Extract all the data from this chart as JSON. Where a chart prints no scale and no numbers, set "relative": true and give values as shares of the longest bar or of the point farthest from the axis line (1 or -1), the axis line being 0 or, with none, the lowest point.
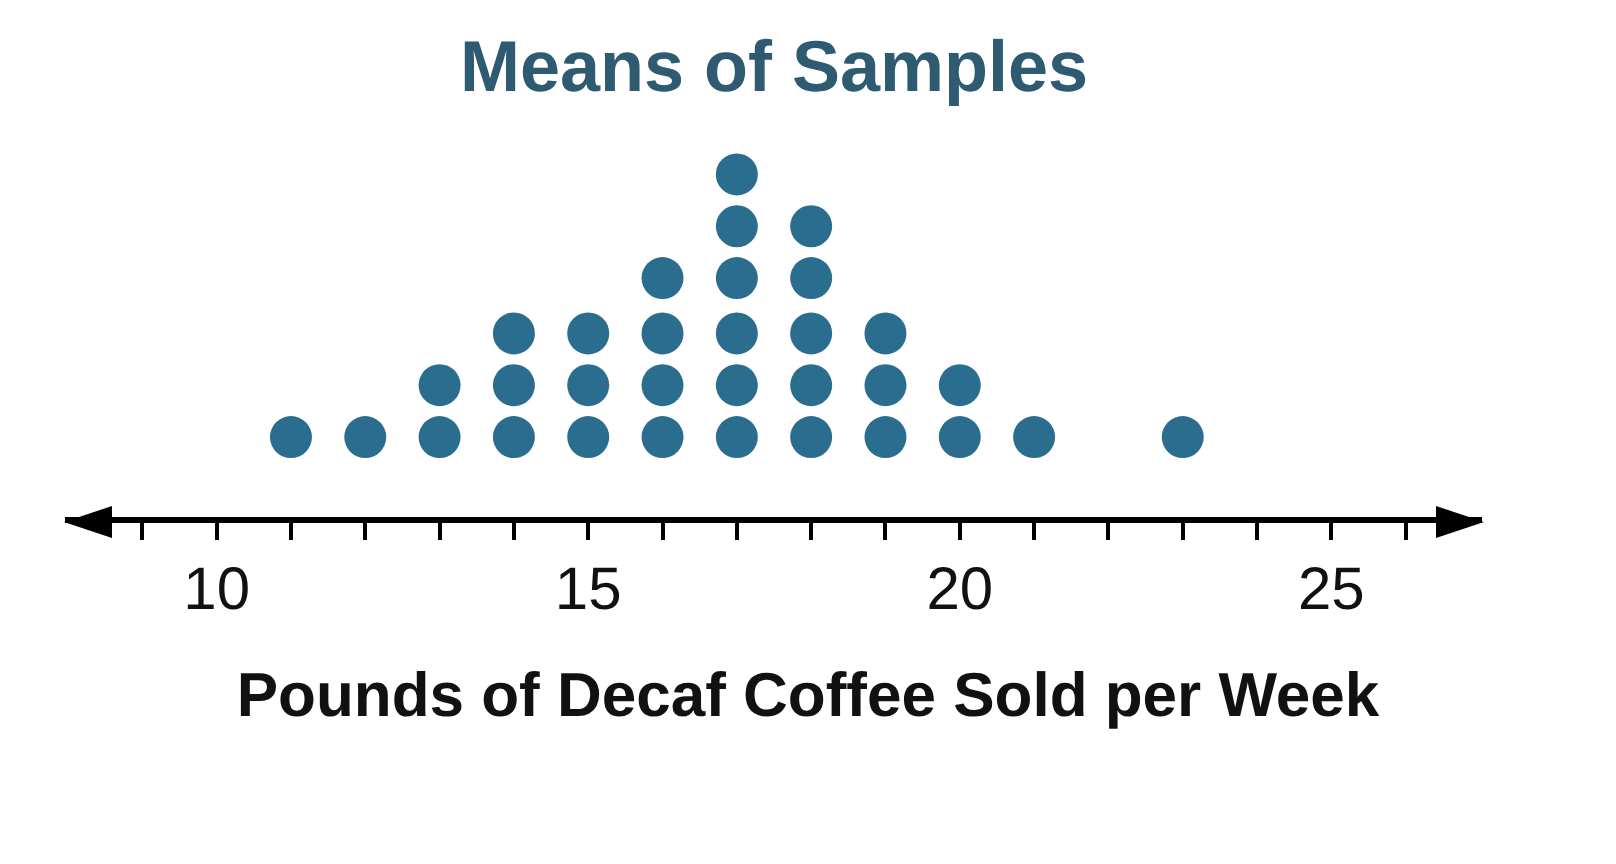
{
  "chart_data": {
    "type": "scatter",
    "title": "Means of Samples",
    "xlabel": "Pounds of Decaf Coffee Sold per Week",
    "relative": true,
    "x": [
      11,
      12,
      13,
      13,
      14,
      14,
      14,
      15,
      15,
      15,
      16,
      16,
      16,
      16,
      17,
      17,
      17,
      17,
      17,
      17,
      18,
      18,
      18,
      18,
      18,
      19,
      19,
      19,
      20,
      20,
      21,
      23
    ],
    "series": [
      {
        "color": "#2b6d8e",
        "values": [
          0.24,
          0.24,
          0.24,
          0.39,
          0.24,
          0.39,
          0.54,
          0.24,
          0.39,
          0.54,
          0.24,
          0.39,
          0.54,
          0.7,
          0.24,
          0.39,
          0.54,
          0.7,
          0.85,
          1,
          0.24,
          0.39,
          0.54,
          0.7,
          0.85,
          0.24,
          0.39,
          0.54,
          0.24,
          0.39,
          0.24,
          0.24
        ]
      }
    ],
    "xlim": [
      8,
      27
    ],
    "xticks": [
      {
        "value": 9,
        "label": null
      },
      10,
      {
        "value": 11,
        "label": null
      },
      {
        "value": 12,
        "label": null
      },
      {
        "value": 13,
        "label": null
      },
      {
        "value": 14,
        "label": null
      },
      15,
      {
        "value": 16,
        "label": null
      },
      {
        "value": 17,
        "label": null
      },
      {
        "value": 18,
        "label": null
      },
      {
        "value": 19,
        "label": null
      },
      20,
      {
        "value": 21,
        "label": null
      },
      {
        "value": 22,
        "label": null
      },
      {
        "value": 23,
        "label": null
      },
      {
        "value": 24,
        "label": null
      },
      25,
      {
        "value": 26,
        "label": null
      }
    ],
    "tick_labels": "x",
    "grid": false,
    "legend": false,
    "marker": "circle"
  }
}
